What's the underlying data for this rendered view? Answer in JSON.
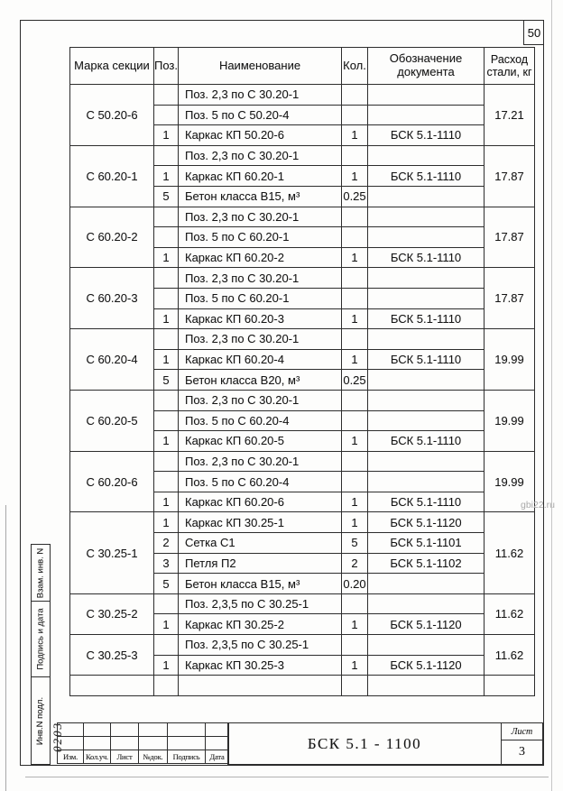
{
  "page": {
    "number": "50",
    "watermark": "gbi22.ru"
  },
  "table": {
    "headers": {
      "mark": "Марка секции",
      "pos": "Поз.",
      "name": "Наименование",
      "qty": "Кол.",
      "doc": "Обозначение документа",
      "steel": "Расход стали, кг"
    },
    "groups": [
      {
        "mark": "С 50.20-6",
        "consumption": "17.21",
        "rows": [
          {
            "pos": "",
            "name": "Поз. 2,3 по С 30.20-1",
            "qty": "",
            "doc": ""
          },
          {
            "pos": "",
            "name": "Поз. 5 по С 50.20-4",
            "qty": "",
            "doc": ""
          },
          {
            "pos": "1",
            "name": "Каркас КП 50.20-6",
            "qty": "1",
            "doc": "БСК 5.1-1110"
          }
        ]
      },
      {
        "mark": "С 60.20-1",
        "consumption": "17.87",
        "rows": [
          {
            "pos": "",
            "name": "Поз. 2,3 по С 30.20-1",
            "qty": "",
            "doc": ""
          },
          {
            "pos": "1",
            "name": "Каркас КП 60.20-1",
            "qty": "1",
            "doc": "БСК 5.1-1110"
          },
          {
            "pos": "5",
            "name": "Бетон класса В15, м³",
            "qty": "0.25",
            "doc": ""
          }
        ]
      },
      {
        "mark": "С 60.20-2",
        "consumption": "17.87",
        "rows": [
          {
            "pos": "",
            "name": "Поз. 2,3 по С 30.20-1",
            "qty": "",
            "doc": ""
          },
          {
            "pos": "",
            "name": "Поз. 5 по С 60.20-1",
            "qty": "",
            "doc": ""
          },
          {
            "pos": "1",
            "name": "Каркас КП 60.20-2",
            "qty": "1",
            "doc": "БСК 5.1-1110"
          }
        ]
      },
      {
        "mark": "С 60.20-3",
        "consumption": "17.87",
        "rows": [
          {
            "pos": "",
            "name": "Поз. 2,3 по С 30.20-1",
            "qty": "",
            "doc": ""
          },
          {
            "pos": "",
            "name": "Поз. 5 по С 60.20-1",
            "qty": "",
            "doc": ""
          },
          {
            "pos": "1",
            "name": "Каркас КП 60.20-3",
            "qty": "1",
            "doc": "БСК 5.1-1110"
          }
        ]
      },
      {
        "mark": "С 60.20-4",
        "consumption": "19.99",
        "rows": [
          {
            "pos": "",
            "name": "Поз. 2,3 по С 30.20-1",
            "qty": "",
            "doc": ""
          },
          {
            "pos": "1",
            "name": "Каркас КП 60.20-4",
            "qty": "1",
            "doc": "БСК 5.1-1110"
          },
          {
            "pos": "5",
            "name": "Бетон класса В20, м³",
            "qty": "0.25",
            "doc": ""
          }
        ]
      },
      {
        "mark": "С 60.20-5",
        "consumption": "19.99",
        "rows": [
          {
            "pos": "",
            "name": "Поз. 2,3 по С 30.20-1",
            "qty": "",
            "doc": ""
          },
          {
            "pos": "",
            "name": "Поз. 5 по С 60.20-4",
            "qty": "",
            "doc": ""
          },
          {
            "pos": "1",
            "name": "Каркас КП 60.20-5",
            "qty": "1",
            "doc": "БСК 5.1-1110"
          }
        ]
      },
      {
        "mark": "С 60.20-6",
        "consumption": "19.99",
        "rows": [
          {
            "pos": "",
            "name": "Поз. 2,3 по С 30.20-1",
            "qty": "",
            "doc": ""
          },
          {
            "pos": "",
            "name": "Поз. 5 по С 60.20-4",
            "qty": "",
            "doc": ""
          },
          {
            "pos": "1",
            "name": "Каркас КП 60.20-6",
            "qty": "1",
            "doc": "БСК 5.1-1110"
          }
        ]
      },
      {
        "mark": "С 30.25-1",
        "consumption": "11.62",
        "rows": [
          {
            "pos": "1",
            "name": "Каркас КП 30.25-1",
            "qty": "1",
            "doc": "БСК 5.1-1120"
          },
          {
            "pos": "2",
            "name": "Сетка  С1",
            "qty": "5",
            "doc": "БСК 5.1-1101"
          },
          {
            "pos": "3",
            "name": "Петля П2",
            "qty": "2",
            "doc": "БСК 5.1-1102"
          },
          {
            "pos": "5",
            "name": "Бетон класса В15, м³",
            "qty": "0.20",
            "doc": ""
          }
        ]
      },
      {
        "mark": "С 30.25-2",
        "consumption": "11.62",
        "rows": [
          {
            "pos": "",
            "name": "Поз. 2,3,5 по С 30.25-1",
            "qty": "",
            "doc": ""
          },
          {
            "pos": "1",
            "name": "Каркас КП 30.25-2",
            "qty": "1",
            "doc": "БСК 5.1-1120"
          }
        ]
      },
      {
        "mark": "С 30.25-3",
        "consumption": "11.62",
        "rows": [
          {
            "pos": "",
            "name": "Поз. 2,3,5 по С 30.25-1",
            "qty": "",
            "doc": ""
          },
          {
            "pos": "1",
            "name": "Каркас КП 30.25-3",
            "qty": "1",
            "doc": "БСК 5.1-1120"
          }
        ]
      },
      {
        "mark": "",
        "consumption": "",
        "rows": [
          {
            "pos": "",
            "name": "",
            "qty": "",
            "doc": ""
          }
        ]
      }
    ]
  },
  "title_block": {
    "rev_labels": [
      "Изм.",
      "Кол.уч.",
      "Лист",
      "№док.",
      "Подпись",
      "Дата"
    ],
    "doc_code": "БСК 5.1 - 1100",
    "sheet_label": "Лист",
    "sheet_number": "3"
  },
  "side_stamp": {
    "cells": [
      "Взам. инв. N",
      "Подпись и дата",
      "Инв.N подл."
    ],
    "handwritten": "0203"
  }
}
